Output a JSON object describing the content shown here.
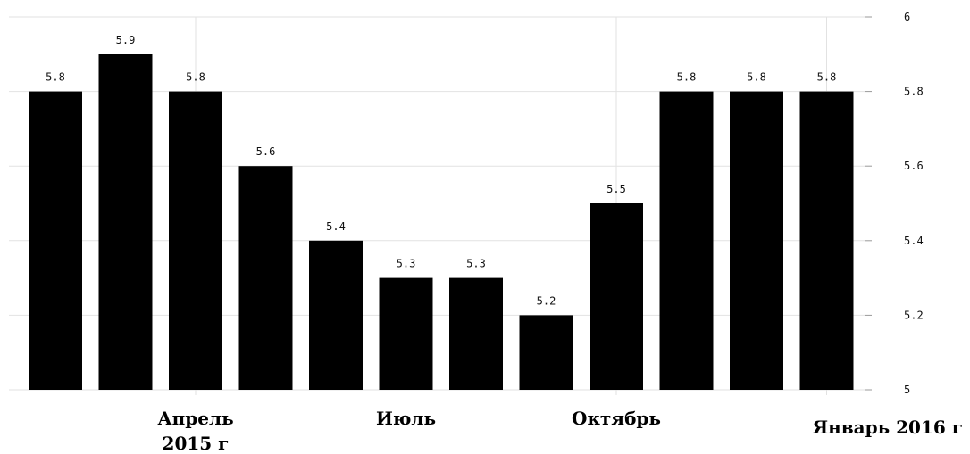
{
  "chart_data": {
    "type": "bar",
    "categories": [
      "",
      "",
      "",
      "",
      "",
      "",
      "",
      "",
      "",
      "",
      "",
      ""
    ],
    "values": [
      5.8,
      5.9,
      5.8,
      5.6,
      5.4,
      5.3,
      5.3,
      5.2,
      5.5,
      5.8,
      5.8,
      5.8
    ],
    "data_labels": [
      "5.8",
      "5.9",
      "5.8",
      "5.6",
      "5.4",
      "5.3",
      "5.3",
      "5.2",
      "5.5",
      "5.8",
      "5.8",
      "5.8"
    ],
    "ylim": [
      5,
      6
    ],
    "yticks": [
      "5",
      "5.2",
      "5.4",
      "5.6",
      "5.8",
      "6"
    ],
    "x_tick_labels": [
      {
        "index": 2,
        "lines": [
          "Апрель",
          "2015 г"
        ]
      },
      {
        "index": 5,
        "lines": [
          "Июль"
        ]
      },
      {
        "index": 8,
        "lines": [
          "Октябрь"
        ]
      },
      {
        "index": 11,
        "lines": [
          "Январь 2016 г"
        ]
      }
    ],
    "yaxis_position": "right",
    "grid": true,
    "bar_color": "#000000",
    "grid_color": "#e2e2e2"
  }
}
